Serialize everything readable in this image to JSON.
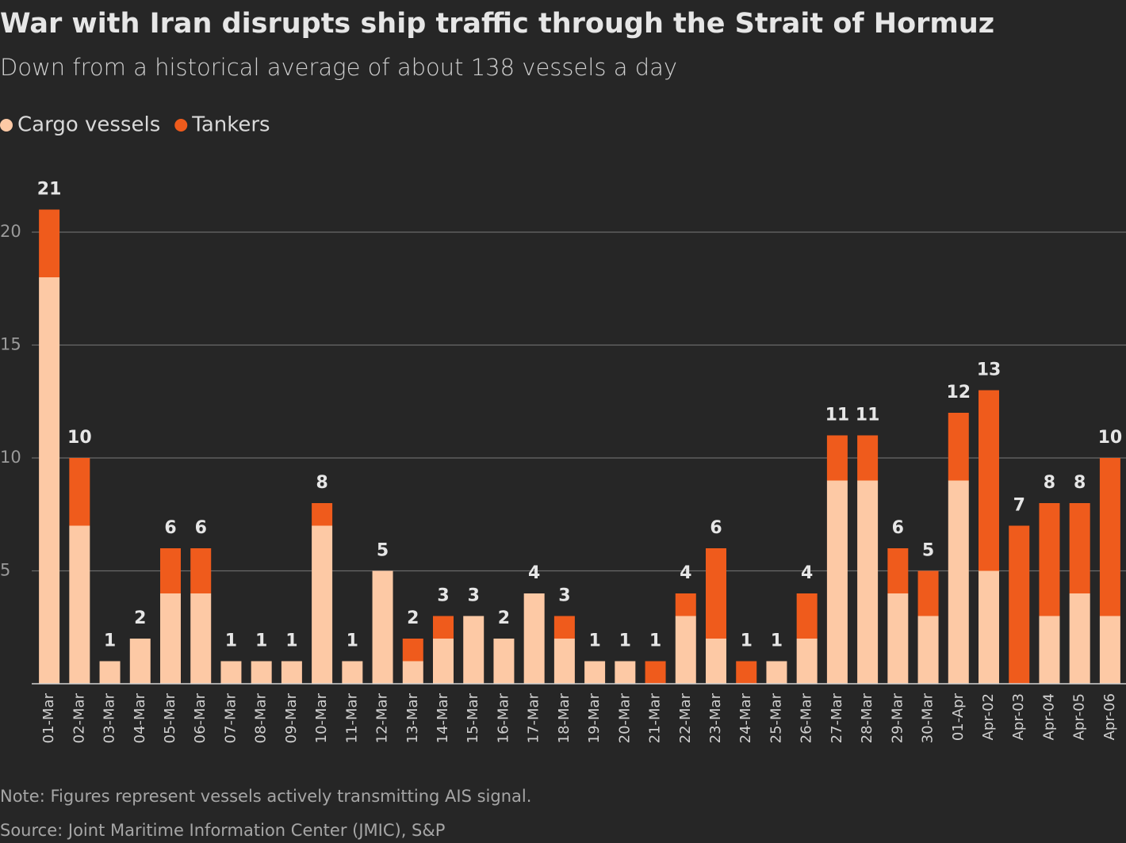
{
  "chart_data": {
    "type": "stacked-bar",
    "title": "War with Iran disrupts ship traffic through the Strait of Hormuz",
    "subtitle": "Down from a historical average of about 138 vessels a day",
    "categories": [
      "01-Mar",
      "02-Mar",
      "03-Mar",
      "04-Mar",
      "05-Mar",
      "06-Mar",
      "07-Mar",
      "08-Mar",
      "09-Mar",
      "10-Mar",
      "11-Mar",
      "12-Mar",
      "13-Mar",
      "14-Mar",
      "15-Mar",
      "16-Mar",
      "17-Mar",
      "18-Mar",
      "19-Mar",
      "20-Mar",
      "21-Mar",
      "22-Mar",
      "23-Mar",
      "24-Mar",
      "25-Mar",
      "26-Mar",
      "27-Mar",
      "28-Mar",
      "29-Mar",
      "30-Mar",
      "01-Apr",
      "Apr-02",
      "Apr-03",
      "Apr-04",
      "Apr-05",
      "Apr-06"
    ],
    "series": [
      {
        "name": "Cargo vessels",
        "color": "#fdc9a5",
        "values": [
          18,
          7,
          1,
          2,
          4,
          4,
          1,
          1,
          1,
          7,
          1,
          5,
          1,
          2,
          3,
          2,
          4,
          2,
          1,
          1,
          0,
          3,
          2,
          0,
          1,
          2,
          9,
          9,
          4,
          3,
          9,
          5,
          0,
          3,
          4,
          3
        ]
      },
      {
        "name": "Tankers",
        "color": "#ef5b1c",
        "values": [
          3,
          3,
          0,
          0,
          2,
          2,
          0,
          0,
          0,
          1,
          0,
          0,
          1,
          1,
          0,
          0,
          0,
          1,
          0,
          0,
          1,
          1,
          4,
          1,
          0,
          2,
          2,
          2,
          2,
          2,
          3,
          8,
          7,
          5,
          4,
          7
        ]
      }
    ],
    "totals": [
      21,
      10,
      1,
      2,
      6,
      6,
      1,
      1,
      1,
      8,
      1,
      5,
      2,
      3,
      3,
      2,
      4,
      3,
      1,
      1,
      1,
      4,
      6,
      1,
      1,
      4,
      11,
      11,
      6,
      5,
      12,
      13,
      7,
      8,
      8,
      10
    ],
    "ylim": [
      0,
      21
    ],
    "yticks": [
      5,
      10,
      15,
      20
    ],
    "grid": true,
    "notes": [
      "Note: Figures represent vessels actively transmitting AIS signal.",
      "Source: Joint Maritime Information Center (JMIC), S&P"
    ]
  }
}
